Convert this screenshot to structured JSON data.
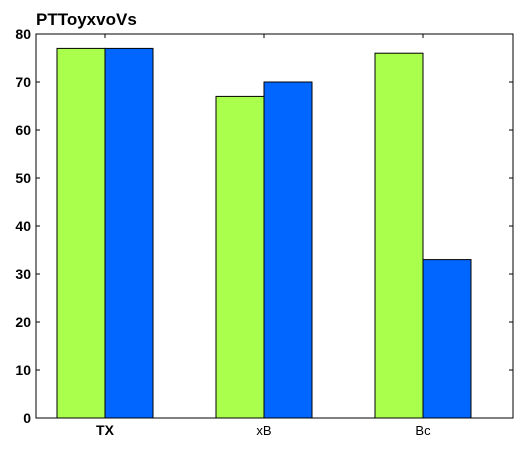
{
  "chart_data": {
    "type": "bar",
    "title": "PTToyxvoVs",
    "xlabel": "",
    "ylabel": "",
    "categories": [
      "TX",
      "xB",
      "Bc"
    ],
    "series": [
      {
        "color": "#aaff4c",
        "values": [
          77,
          67,
          76
        ]
      },
      {
        "color": "#0066ff",
        "values": [
          77,
          70,
          33
        ]
      }
    ],
    "ylim": [
      0,
      80
    ],
    "yticks": [
      0,
      10,
      20,
      30,
      40,
      50,
      60,
      70,
      80
    ],
    "bold_categories": [
      "TX"
    ],
    "grid": false,
    "legend": "none"
  }
}
